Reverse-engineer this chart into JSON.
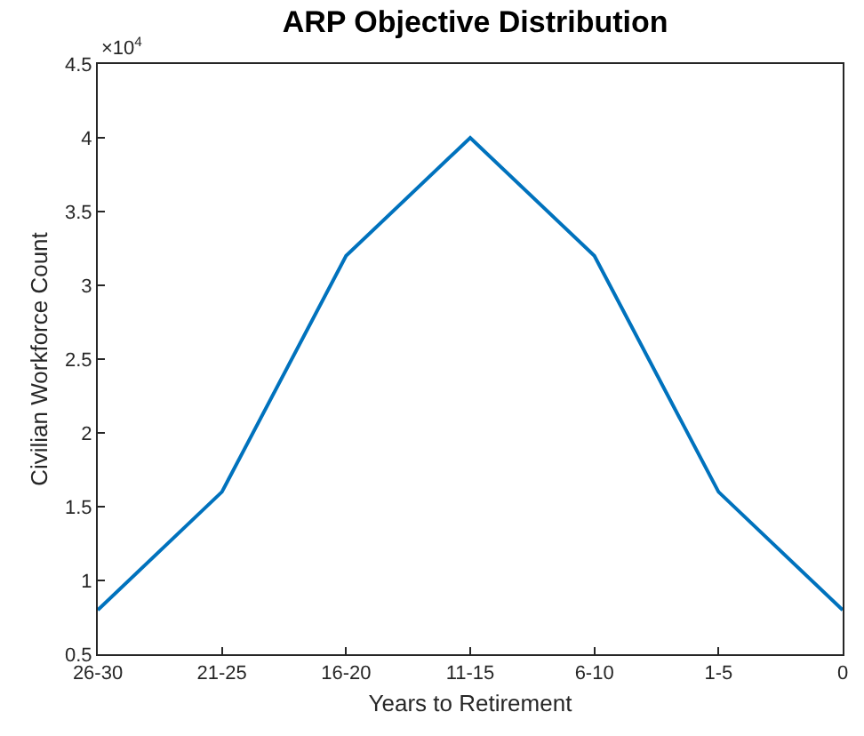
{
  "chart_data": {
    "type": "line",
    "title": "ARP Objective Distribution",
    "xlabel": "Years to Retirement",
    "ylabel": "Civilian Workforce Count",
    "categories": [
      "26-30",
      "21-25",
      "16-20",
      "11-15",
      "6-10",
      "1-5",
      "0"
    ],
    "series": [
      {
        "color": "#0072bd",
        "values": [
          0.8,
          1.6,
          3.2,
          4.0,
          3.2,
          1.6,
          0.8
        ]
      }
    ],
    "ylim": [
      0.5,
      4.5
    ],
    "yticks": [
      0.5,
      1,
      1.5,
      2,
      2.5,
      3,
      3.5,
      4,
      4.5
    ],
    "annotations": [
      "×10$^{4}$"
    ],
    "grid": false,
    "marker": "none",
    "line_style": "solid"
  }
}
